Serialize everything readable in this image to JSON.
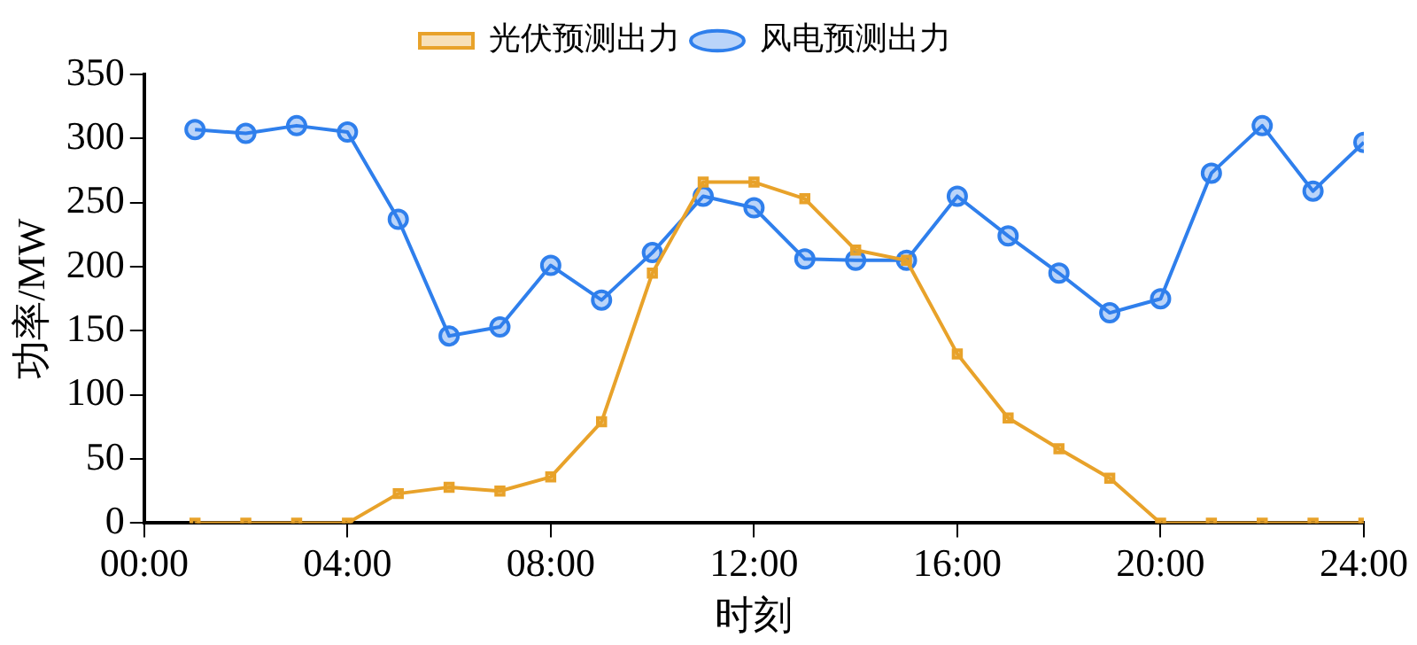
{
  "chart_data": {
    "type": "line",
    "xlabel": "时刻",
    "ylabel": "功率/MW",
    "x": [
      1,
      2,
      3,
      4,
      5,
      6,
      7,
      8,
      9,
      10,
      11,
      12,
      13,
      14,
      15,
      16,
      17,
      18,
      19,
      20,
      21,
      22,
      23,
      24
    ],
    "series": [
      {
        "name": "光伏预测出力",
        "color": "#e8a22a",
        "marker": "square",
        "values": [
          0,
          0,
          0,
          0,
          23,
          28,
          25,
          36,
          79,
          195,
          266,
          266,
          253,
          213,
          205,
          132,
          82,
          58,
          35,
          0,
          0,
          0,
          0,
          0
        ]
      },
      {
        "name": "风电预测出力",
        "color": "#2f7fec",
        "marker": "circle",
        "values": [
          307,
          304,
          310,
          305,
          237,
          146,
          153,
          201,
          174,
          211,
          255,
          246,
          206,
          205,
          205,
          255,
          224,
          195,
          164,
          175,
          273,
          310,
          259,
          297
        ]
      }
    ],
    "xlim": [
      0,
      24
    ],
    "xticks": [
      {
        "value": 0,
        "label": "00:00"
      },
      {
        "value": 4,
        "label": "04:00"
      },
      {
        "value": 8,
        "label": "08:00"
      },
      {
        "value": 12,
        "label": "12:00"
      },
      {
        "value": 16,
        "label": "16:00"
      },
      {
        "value": 20,
        "label": "20:00"
      },
      {
        "value": 24,
        "label": "24:00"
      }
    ],
    "ylim": [
      0,
      350
    ],
    "yticks": [
      0,
      50,
      100,
      150,
      200,
      250,
      300,
      350
    ],
    "grid": false,
    "legend": "top",
    "line_style": "solid"
  }
}
